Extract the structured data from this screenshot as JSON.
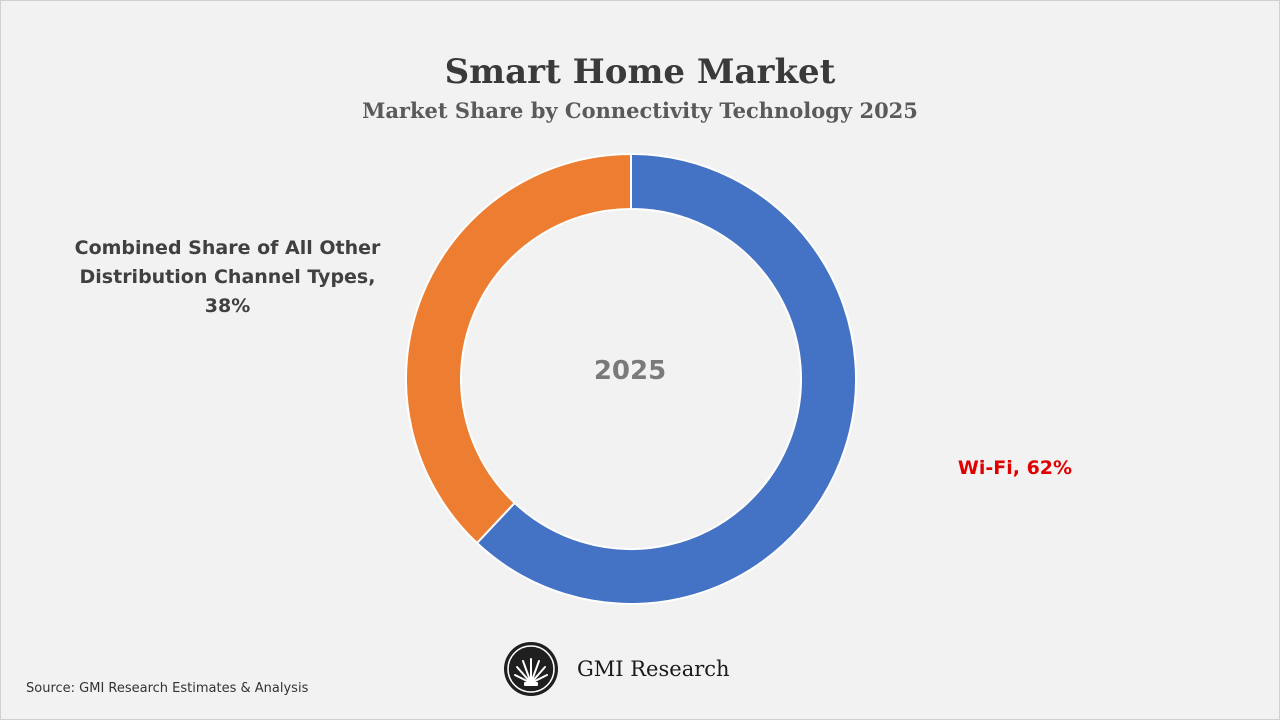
{
  "header": {
    "title": "Smart Home Market",
    "subtitle": "Market Share by Connectivity Technology 2025"
  },
  "chart_data": {
    "type": "pie",
    "variant": "donut",
    "title": "Smart Home Market",
    "subtitle": "Market Share by Connectivity Technology 2025",
    "center_label": "2025",
    "slices": [
      {
        "label": "Wi-Fi",
        "value": 62,
        "display": "Wi-Fi, 62%",
        "color": "#4472c4",
        "label_color": "#e00000"
      },
      {
        "label": "Combined Share of All Other Distribution Channel Types",
        "value": 38,
        "display_lines": [
          "Combined Share of All Other",
          "Distribution Channel Types,",
          "38%"
        ],
        "color": "#ed7d31",
        "label_color": "#404040"
      }
    ]
  },
  "footer": {
    "source": "Source: GMI Research Estimates & Analysis",
    "brand": "GMI Research",
    "logo_icon": "gmi-fan-logo-icon"
  }
}
